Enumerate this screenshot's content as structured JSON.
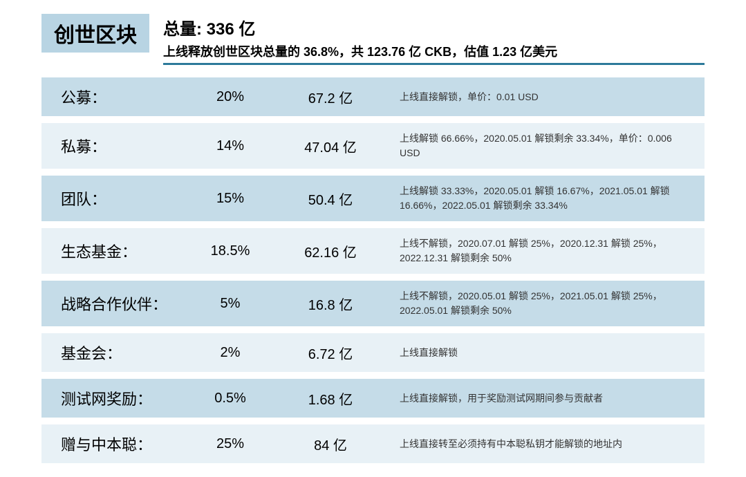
{
  "header": {
    "title_badge": "创世区块",
    "total_label": "总量: 336 亿",
    "subtitle": "上线释放创世区块总量的 36.8%，共 123.76 亿 CKB，估值 1.23 亿美元"
  },
  "styling": {
    "badge_bg": "#b8d4e3",
    "row_bg_dark": "#c5dce8",
    "row_bg_light": "#e8f1f6",
    "underline_color": "#2d7a9a",
    "title_fontsize": 30,
    "total_fontsize": 24,
    "subtitle_fontsize": 18,
    "label_fontsize": 22,
    "percent_fontsize": 20,
    "amount_fontsize": 20,
    "note_fontsize": 14,
    "row_gap": 10,
    "row_padding_v": 12,
    "container_width": 1079,
    "container_height": 650
  },
  "rows": [
    {
      "label": "公募：",
      "percent": "20%",
      "amount": "67.2 亿",
      "note": "上线直接解锁，单价：0.01 USD",
      "bg": "#c5dce8"
    },
    {
      "label": "私募：",
      "percent": "14%",
      "amount": "47.04 亿",
      "note": "上线解锁 66.66%，2020.05.01 解锁剩余 33.34%，单价：0.006 USD",
      "bg": "#e8f1f6"
    },
    {
      "label": "团队：",
      "percent": "15%",
      "amount": "50.4 亿",
      "note": "上线解锁 33.33%，2020.05.01 解锁 16.67%，2021.05.01 解锁 16.66%，2022.05.01 解锁剩余 33.34%",
      "bg": "#c5dce8"
    },
    {
      "label": "生态基金：",
      "percent": "18.5%",
      "amount": "62.16 亿",
      "note": "上线不解锁，2020.07.01 解锁 25%，2020.12.31 解锁 25%，2022.12.31 解锁剩余 50%",
      "bg": "#e8f1f6"
    },
    {
      "label": "战略合作伙伴：",
      "percent": "5%",
      "amount": "16.8 亿",
      "note": "上线不解锁，2020.05.01 解锁 25%，2021.05.01 解锁 25%，2022.05.01 解锁剩余 50%",
      "bg": "#c5dce8"
    },
    {
      "label": "基金会：",
      "percent": "2%",
      "amount": "6.72 亿",
      "note": "上线直接解锁",
      "bg": "#e8f1f6"
    },
    {
      "label": "测试网奖励：",
      "percent": "0.5%",
      "amount": "1.68 亿",
      "note": "上线直接解锁，用于奖励测试网期间参与贡献者",
      "bg": "#c5dce8"
    },
    {
      "label": "赠与中本聪：",
      "percent": "25%",
      "amount": "84 亿",
      "note": "上线直接转至必须持有中本聪私钥才能解锁的地址内",
      "bg": "#e8f1f6"
    }
  ]
}
